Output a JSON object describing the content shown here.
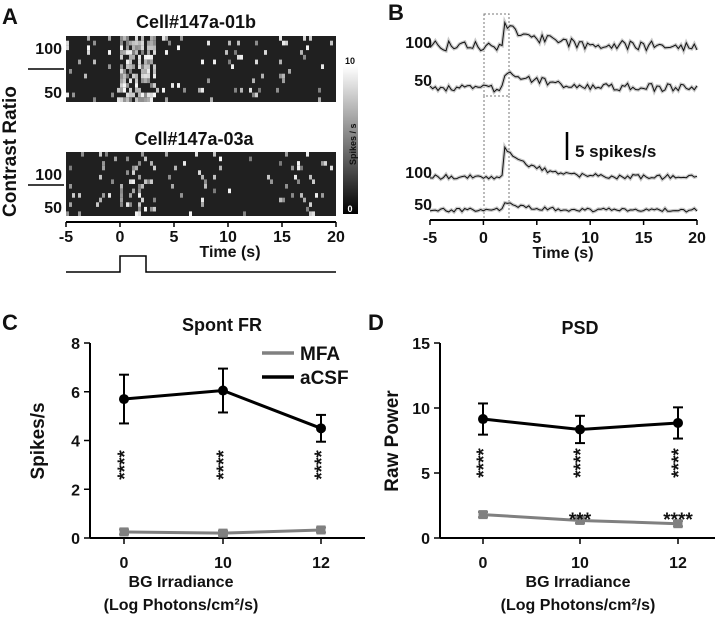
{
  "panel_labels": [
    "A",
    "B",
    "C",
    "D"
  ],
  "panel_a": {
    "ylabel": "Contrast Ratio",
    "xlabel": "Time (s)",
    "xticks": [
      "-5",
      "0",
      "5",
      "10",
      "15",
      "20"
    ],
    "rasters": [
      {
        "title": "Cell#147a-01b",
        "yticks": [
          "100",
          "50"
        ]
      },
      {
        "title": "Cell#147a-03a",
        "yticks": [
          "100",
          "50"
        ]
      }
    ],
    "colorbar": {
      "label": "Spikes / s",
      "max": "10",
      "min": "0"
    }
  },
  "panel_b": {
    "xlabel": "Time (s)",
    "xticks": [
      "-5",
      "0",
      "5",
      "10",
      "15",
      "20"
    ],
    "trace_labels": [
      "100",
      "50",
      "100",
      "50"
    ],
    "scalebar_label": "5 spikes/s"
  },
  "chart_data": [
    {
      "type": "line",
      "title": "Spont FR",
      "xlabel": "BG Irradiance",
      "xlabel2": "(Log Photons/cm²/s)",
      "ylabel": "Spikes/s",
      "categories": [
        "0",
        "10",
        "12"
      ],
      "yticks": [
        "0",
        "2",
        "4",
        "6",
        "8"
      ],
      "ylim": [
        0,
        8
      ],
      "series": [
        {
          "name": "MFA",
          "color": "#808080",
          "marker": "square",
          "values": [
            0.25,
            0.2,
            0.33
          ],
          "errors": [
            0.1,
            0.1,
            0.1
          ]
        },
        {
          "name": "aCSF",
          "color": "#000000",
          "marker": "circle",
          "values": [
            5.7,
            6.05,
            4.5
          ],
          "errors": [
            1.0,
            0.9,
            0.55
          ]
        }
      ],
      "annotations": [
        "****",
        "****",
        "****"
      ],
      "legend": "top-right"
    },
    {
      "type": "line",
      "title": "PSD",
      "xlabel": "BG Irradiance",
      "xlabel2": "(Log Photons/cm²/s)",
      "ylabel": "Raw Power",
      "categories": [
        "0",
        "10",
        "12"
      ],
      "yticks": [
        "0",
        "5",
        "10",
        "15"
      ],
      "ylim": [
        0,
        15
      ],
      "series": [
        {
          "name": "MFA",
          "color": "#808080",
          "marker": "square",
          "values": [
            1.8,
            1.35,
            1.1
          ],
          "errors": [
            0.2,
            0.2,
            0.2
          ]
        },
        {
          "name": "aCSF",
          "color": "#000000",
          "marker": "circle",
          "values": [
            9.15,
            8.35,
            8.85
          ],
          "errors": [
            1.2,
            1.05,
            1.2
          ]
        }
      ],
      "annotations_top": [
        "****",
        "****",
        "****"
      ],
      "annotations_bottom": [
        "",
        "***",
        "****"
      ]
    }
  ]
}
